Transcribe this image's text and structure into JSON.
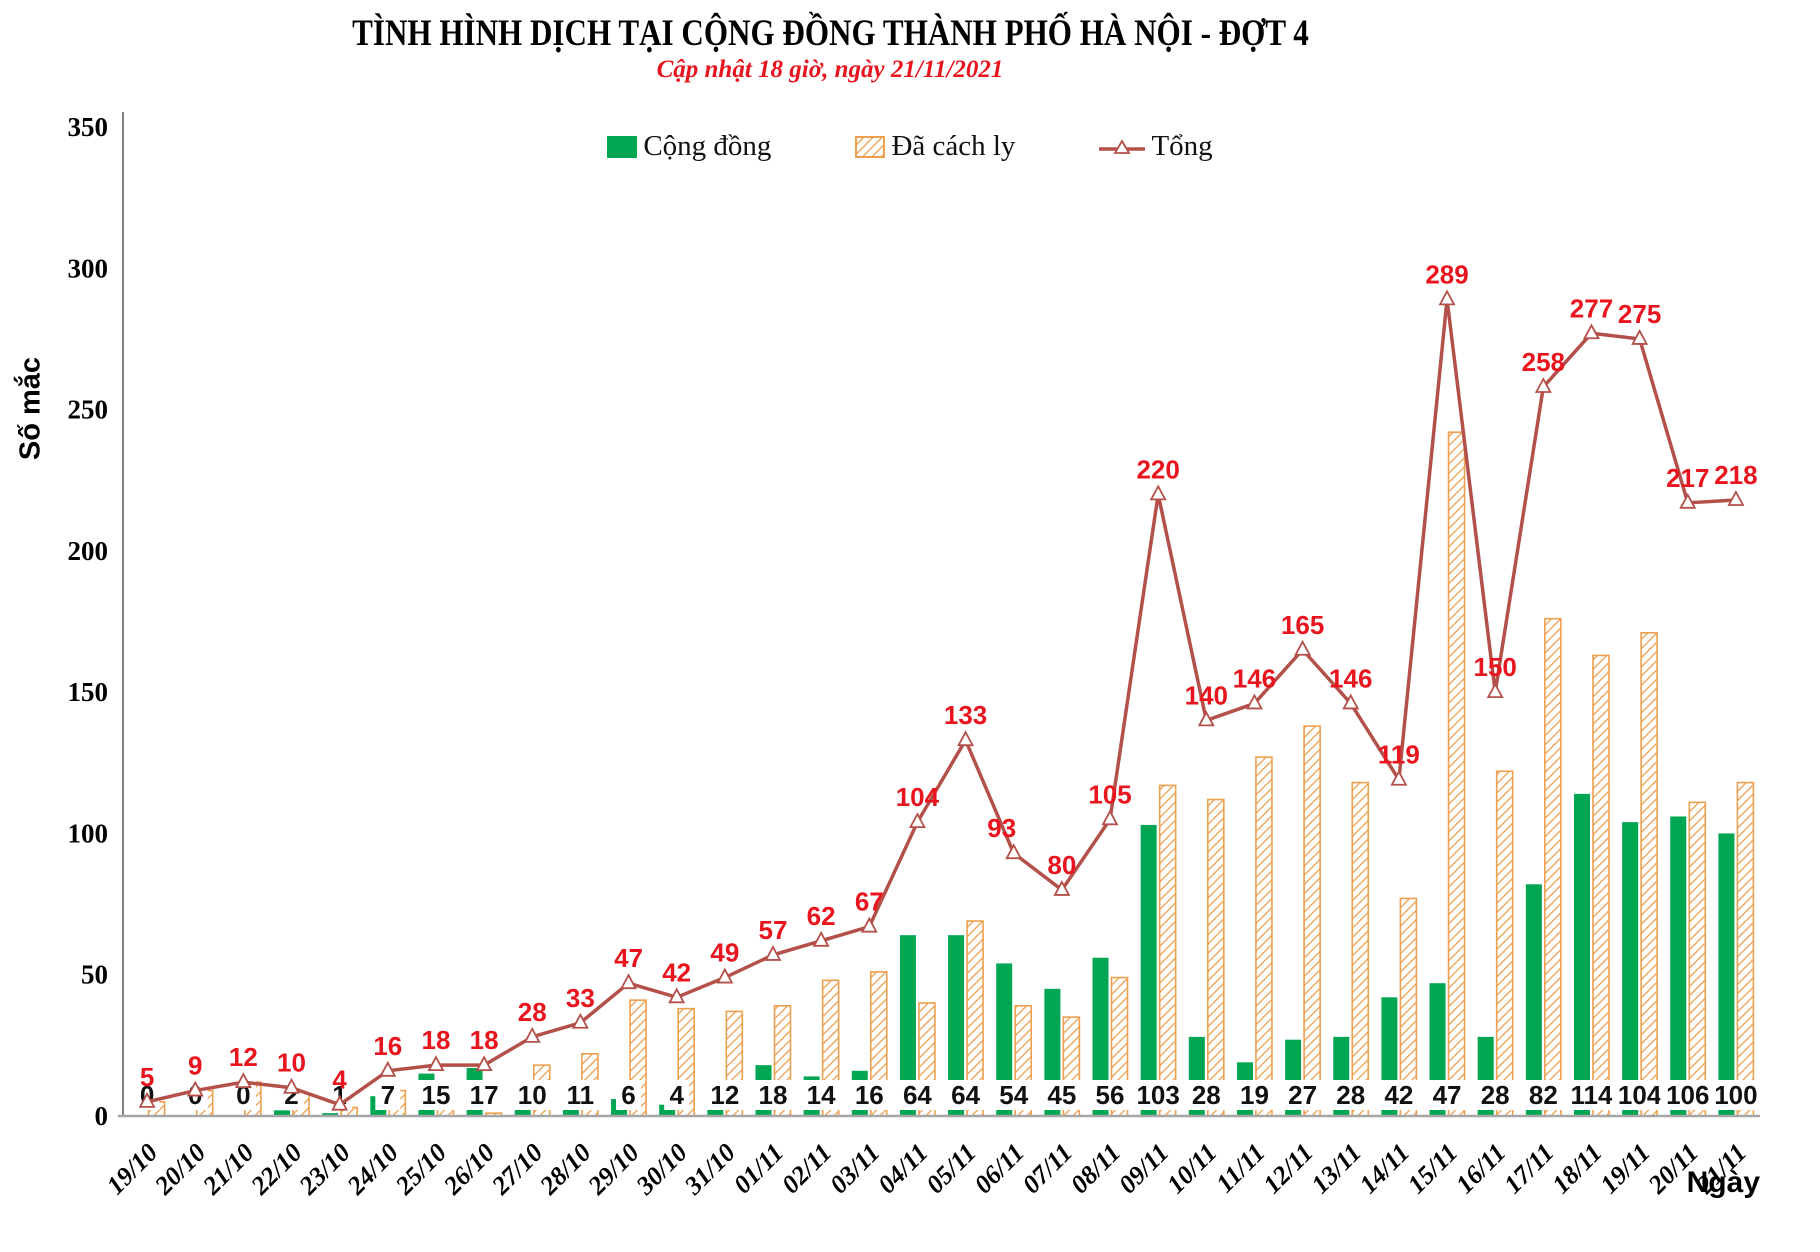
{
  "title": "TÌNH HÌNH DỊCH TẠI CỘNG ĐỒNG THÀNH PHỐ HÀ NỘI - ĐỢT 4",
  "subtitle": "Cập nhật 18 giờ, ngày 21/11/2021",
  "ylabel": "Số mắc",
  "xlabel": "Ngày",
  "legend": {
    "cong_dong": "Cộng đồng",
    "da_cach_ly": "Đã cách ly",
    "tong": "Tổng"
  },
  "colors": {
    "green": "#00A651",
    "orange": "#EDA04F",
    "line": "#B4504A",
    "red_label": "#E8141E",
    "black_label": "#111111",
    "axis": "#A6A6A6",
    "spine": "#7F7F7F"
  },
  "chart_data": {
    "type": "bar",
    "subtype": "grouped bars with total line overlay",
    "title": "TÌNH HÌNH DỊCH TẠI CỘNG ĐỒNG THÀNH PHỐ HÀ NỘI - ĐỢT 4",
    "subtitle": "Cập nhật 18 giờ, ngày 21/11/2021",
    "xlabel": "Ngày",
    "ylabel": "Số mắc",
    "ylim": [
      0,
      350
    ],
    "ytick_step": 50,
    "grid": false,
    "legend_position": "top-center",
    "categories": [
      "19/10",
      "20/10",
      "21/10",
      "22/10",
      "23/10",
      "24/10",
      "25/10",
      "26/10",
      "27/10",
      "28/10",
      "29/10",
      "30/10",
      "31/10",
      "01/11",
      "02/11",
      "03/11",
      "04/11",
      "05/11",
      "06/11",
      "07/11",
      "08/11",
      "09/11",
      "10/11",
      "11/11",
      "12/11",
      "13/11",
      "14/11",
      "15/11",
      "16/11",
      "17/11",
      "18/11",
      "19/11",
      "20/11",
      "21/11"
    ],
    "series": [
      {
        "name": "Cộng đồng",
        "type": "bar",
        "color": "#00A651",
        "values": [
          0,
          0,
          0,
          2,
          1,
          7,
          15,
          17,
          10,
          11,
          6,
          4,
          12,
          18,
          14,
          16,
          64,
          64,
          54,
          45,
          56,
          103,
          28,
          19,
          27,
          28,
          42,
          47,
          28,
          82,
          114,
          104,
          106,
          100
        ]
      },
      {
        "name": "Đã cách ly",
        "type": "bar",
        "pattern": "diagonal-hatch",
        "color": "#EDA04F",
        "values": [
          5,
          9,
          12,
          8,
          3,
          9,
          3,
          1,
          18,
          22,
          41,
          38,
          37,
          39,
          48,
          51,
          40,
          69,
          39,
          35,
          49,
          117,
          112,
          127,
          138,
          118,
          77,
          242,
          122,
          176,
          163,
          171,
          111,
          118
        ]
      },
      {
        "name": "Tổng",
        "type": "line",
        "color": "#B4504A",
        "marker": "open-triangle",
        "label_color": "#E8141E",
        "values": [
          5,
          9,
          12,
          10,
          4,
          16,
          18,
          18,
          28,
          33,
          47,
          42,
          49,
          57,
          62,
          67,
          104,
          133,
          93,
          80,
          105,
          220,
          140,
          146,
          165,
          146,
          119,
          289,
          150,
          258,
          277,
          275,
          217,
          218
        ]
      }
    ]
  }
}
